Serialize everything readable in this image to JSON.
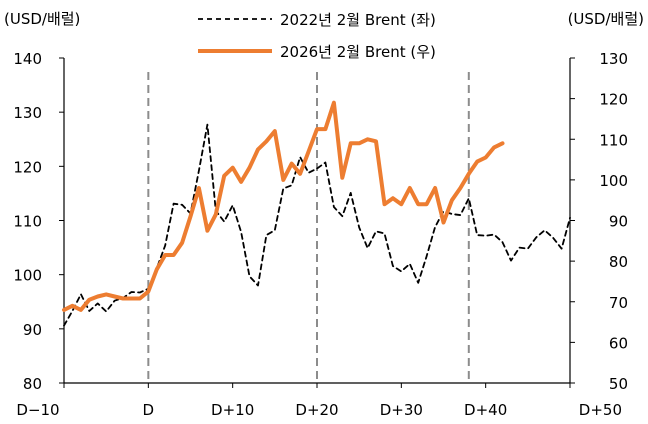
{
  "chart_data": {
    "type": "line",
    "left_axis_unit": "(USD/배럴)",
    "right_axis_unit": "(USD/배럴)",
    "y_left": {
      "min": 80,
      "max": 140,
      "ticks": [
        80,
        90,
        100,
        110,
        120,
        130,
        140
      ]
    },
    "y_right": {
      "min": 50,
      "max": 130,
      "ticks": [
        50,
        60,
        70,
        80,
        90,
        100,
        110,
        120,
        130
      ]
    },
    "x": {
      "min": -10,
      "max": 50,
      "ticks": [
        {
          "value": -10,
          "label": "D−10"
        },
        {
          "value": 0,
          "label": "D"
        },
        {
          "value": 10,
          "label": "D+10"
        },
        {
          "value": 20,
          "label": "D+20"
        },
        {
          "value": 30,
          "label": "D+30"
        },
        {
          "value": 40,
          "label": "D+40"
        },
        {
          "value": 50,
          "label": "D+50"
        }
      ]
    },
    "reference_lines": [
      0,
      20,
      38
    ],
    "series": [
      {
        "name": "2022년 2월 Brent (좌)",
        "axis": "left",
        "color": "#000000",
        "style": "dashed",
        "points": [
          [
            -10,
            90.6
          ],
          [
            -9,
            93.3
          ],
          [
            -8,
            96.4
          ],
          [
            -7,
            93.3
          ],
          [
            -6,
            94.7
          ],
          [
            -5,
            93.2
          ],
          [
            -4,
            95.2
          ],
          [
            -3,
            95.7
          ],
          [
            -2,
            96.8
          ],
          [
            -1,
            96.7
          ],
          [
            0,
            97.4
          ],
          [
            1,
            101.2
          ],
          [
            2,
            105.4
          ],
          [
            3,
            113.1
          ],
          [
            4,
            112.9
          ],
          [
            5,
            111.3
          ],
          [
            6,
            119.2
          ],
          [
            7,
            127.7
          ],
          [
            8,
            111.8
          ],
          [
            9,
            109.8
          ],
          [
            10,
            112.8
          ],
          [
            11,
            107.9
          ],
          [
            12,
            99.7
          ],
          [
            13,
            98.0
          ],
          [
            14,
            107.3
          ],
          [
            15,
            108.2
          ],
          [
            16,
            115.9
          ],
          [
            17,
            116.5
          ],
          [
            18,
            121.7
          ],
          [
            19,
            118.8
          ],
          [
            20,
            119.6
          ],
          [
            21,
            120.7
          ],
          [
            22,
            112.5
          ],
          [
            23,
            110.8
          ],
          [
            24,
            115.1
          ],
          [
            25,
            108.7
          ],
          [
            26,
            104.9
          ],
          [
            27,
            108.0
          ],
          [
            28,
            107.6
          ],
          [
            29,
            101.6
          ],
          [
            30,
            100.6
          ],
          [
            31,
            102.0
          ],
          [
            32,
            98.5
          ],
          [
            33,
            103.4
          ],
          [
            34,
            108.8
          ],
          [
            35,
            111.7
          ],
          [
            36,
            111.2
          ],
          [
            37,
            111.0
          ],
          [
            38,
            114.1
          ],
          [
            39,
            107.3
          ],
          [
            40,
            107.2
          ],
          [
            41,
            107.4
          ],
          [
            42,
            106.0
          ],
          [
            43,
            102.6
          ],
          [
            44,
            105.0
          ],
          [
            45,
            104.8
          ],
          [
            46,
            106.9
          ],
          [
            47,
            108.2
          ],
          [
            48,
            106.8
          ],
          [
            49,
            104.8
          ],
          [
            50,
            110.5
          ]
        ]
      },
      {
        "name": "2026년 2월 Brent (우)",
        "axis": "right",
        "color": "#ED7D31",
        "style": "solid",
        "points": [
          [
            -10,
            68.0
          ],
          [
            -9,
            69.0
          ],
          [
            -8,
            68.0
          ],
          [
            -7,
            70.5
          ],
          [
            -6,
            71.3
          ],
          [
            -5,
            71.8
          ],
          [
            -4,
            71.3
          ],
          [
            -3,
            70.8
          ],
          [
            -2,
            70.8
          ],
          [
            -1,
            70.8
          ],
          [
            0,
            72.5
          ],
          [
            1,
            78.0
          ],
          [
            2,
            81.5
          ],
          [
            3,
            81.5
          ],
          [
            4,
            84.5
          ],
          [
            5,
            91.0
          ],
          [
            6,
            98.0
          ],
          [
            7,
            87.5
          ],
          [
            8,
            91.5
          ],
          [
            9,
            101.0
          ],
          [
            10,
            103.0
          ],
          [
            11,
            99.5
          ],
          [
            12,
            103.0
          ],
          [
            13,
            107.5
          ],
          [
            14,
            109.5
          ],
          [
            15,
            112.0
          ],
          [
            16,
            100.0
          ],
          [
            17,
            104.0
          ],
          [
            18,
            101.5
          ],
          [
            19,
            107.0
          ],
          [
            20,
            112.5
          ],
          [
            21,
            112.5
          ],
          [
            22,
            119.0
          ],
          [
            23,
            100.5
          ],
          [
            24,
            109.0
          ],
          [
            25,
            109.0
          ],
          [
            26,
            110.0
          ],
          [
            27,
            109.5
          ],
          [
            28,
            94.0
          ],
          [
            29,
            95.5
          ],
          [
            30,
            94.0
          ],
          [
            31,
            98.0
          ],
          [
            32,
            94.0
          ],
          [
            33,
            94.0
          ],
          [
            34,
            98.0
          ],
          [
            35,
            89.5
          ],
          [
            36,
            95.0
          ],
          [
            37,
            98.0
          ],
          [
            38,
            101.5
          ],
          [
            39,
            104.5
          ],
          [
            40,
            105.5
          ],
          [
            41,
            108.0
          ],
          [
            42,
            109.0
          ]
        ]
      }
    ]
  }
}
